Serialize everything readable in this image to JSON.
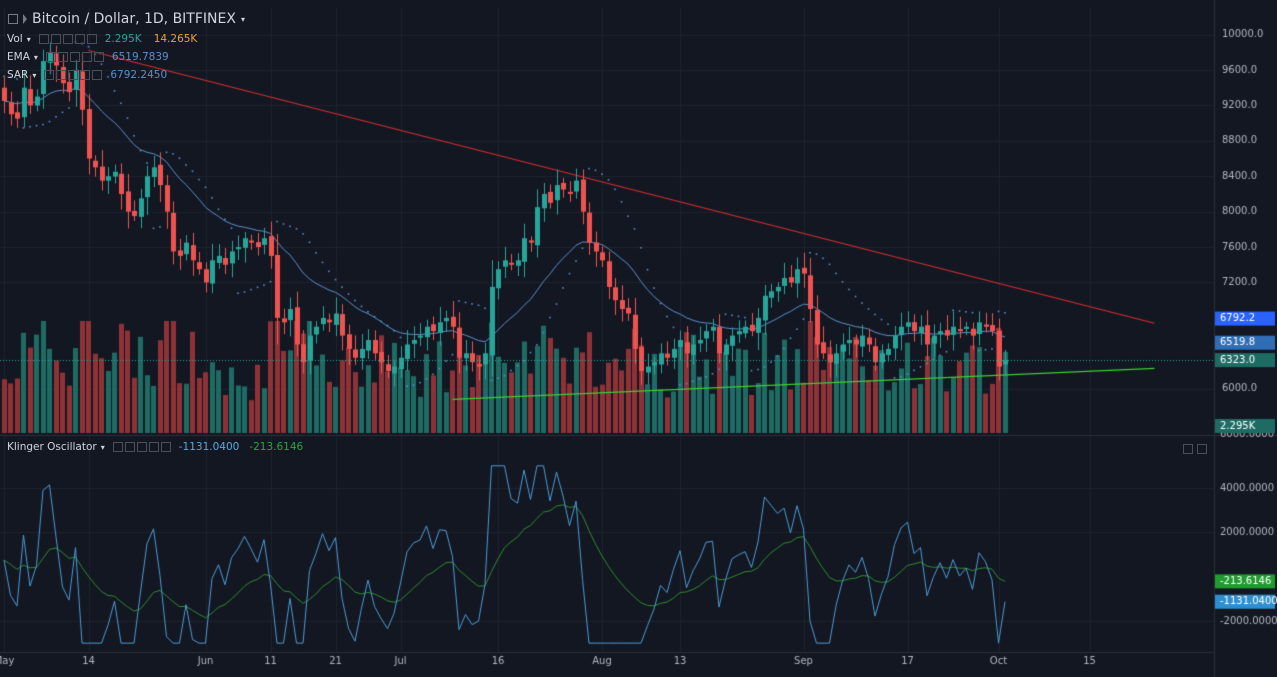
{
  "header": {
    "symbol": "Bitcoin / Dollar, 1D, BITFINEX",
    "caret": "▾"
  },
  "indicators": [
    {
      "name": "Vol",
      "values": [
        "2.295K",
        "14.265K"
      ],
      "colors": [
        "#26a69a",
        "#f0a030"
      ]
    },
    {
      "name": "EMA",
      "values": [
        "6519.7839"
      ],
      "colors": [
        "#5b8fc9"
      ]
    },
    {
      "name": "SAR",
      "values": [
        "6792.2450"
      ],
      "colors": [
        "#5b8fc9"
      ]
    }
  ],
  "oscillator": {
    "name": "Klinger Oscillator",
    "values": [
      "-1131.0400",
      "-213.6146"
    ],
    "colors": [
      "#5aa9e0",
      "#26a641"
    ]
  },
  "colors": {
    "background": "#131722",
    "up": "#26a69a",
    "down": "#ef5350",
    "vol_up": "#1e6b64",
    "vol_down": "#8e3236",
    "ema": "#5b8fc9",
    "sar": "#5b8fc9",
    "trend_down": "#d32f2f",
    "trend_up": "#3fcf2f",
    "klinger": "#4c9bd6",
    "signal": "#2e8b2e",
    "text": "#b2b5be"
  },
  "chart_data": {
    "type": "candlestick",
    "price_axis": {
      "ticks": [
        "10000.0",
        "9600.0",
        "9200.0",
        "8800.0",
        "8400.0",
        "8000.0",
        "7600.0",
        "7200.0",
        "6000.0"
      ],
      "ylim": [
        5500,
        10300
      ],
      "labels": [
        {
          "text": "6792.2",
          "value": 6792.2,
          "color": "#2962ff"
        },
        {
          "text": "6519.8",
          "value": 6519.8,
          "color": "#2f6eb5"
        },
        {
          "text": "6323.0",
          "value": 6323.0,
          "color": "#1e6b64"
        },
        {
          "text": "2.295K",
          "value": 5880,
          "color": "#1e6b64"
        }
      ],
      "bottom_label": "6000.0000"
    },
    "oscillator_axis": {
      "ticks": [
        "4000.0000",
        "2000.0000",
        "-2000.0000"
      ],
      "ylim": [
        -3400,
        6300
      ],
      "labels": [
        {
          "text": "-213.6146",
          "value": -213.6146,
          "color": "#1e9c2e"
        },
        {
          "text": "-1131.0400",
          "value": -1131.04,
          "color": "#2e8fd0"
        }
      ]
    },
    "x_axis": {
      "ticks": [
        "May",
        "14",
        "Jun",
        "11",
        "21",
        "Jul",
        "16",
        "Aug",
        "13",
        "Sep",
        "17",
        "Oct",
        "15"
      ],
      "tick_days": [
        0,
        13,
        31,
        41,
        51,
        61,
        76,
        92,
        104,
        123,
        139,
        153,
        167
      ]
    },
    "first_day": 0,
    "closes": [
      9250,
      9100,
      9050,
      9400,
      9200,
      9300,
      9700,
      9800,
      9650,
      9450,
      9350,
      9600,
      9150,
      8600,
      8500,
      8350,
      8400,
      8450,
      8200,
      8000,
      7950,
      8150,
      8400,
      8500,
      8300,
      8000,
      7550,
      7500,
      7650,
      7450,
      7350,
      7200,
      7450,
      7500,
      7400,
      7550,
      7600,
      7700,
      7650,
      7600,
      7700,
      7500,
      6800,
      6750,
      6900,
      6500,
      6300,
      6600,
      6700,
      6800,
      6750,
      6850,
      6600,
      6450,
      6350,
      6450,
      6550,
      6400,
      6300,
      6200,
      6250,
      6350,
      6500,
      6550,
      6600,
      6700,
      6650,
      6750,
      6800,
      6700,
      6350,
      6400,
      6300,
      6250,
      6400,
      7150,
      7350,
      7450,
      7400,
      7450,
      7700,
      7650,
      8050,
      8200,
      8100,
      8300,
      8250,
      8200,
      8350,
      8000,
      7650,
      7550,
      7450,
      7150,
      7000,
      6900,
      6850,
      6450,
      6200,
      6250,
      6300,
      6400,
      6350,
      6450,
      6550,
      6400,
      6500,
      6550,
      6650,
      6700,
      6400,
      6500,
      6600,
      6650,
      6700,
      6650,
      6800,
      7050,
      7100,
      7150,
      7250,
      7200,
      7350,
      7300,
      6900,
      6500,
      6400,
      6300,
      6400,
      6500,
      6550,
      6500,
      6600,
      6500,
      6300,
      6400,
      6450,
      6600,
      6700,
      6750,
      6650,
      6700,
      6500,
      6600,
      6650,
      6600,
      6700,
      6650,
      6700,
      6600,
      6750,
      6700,
      6650,
      6250,
      6323
    ]
  }
}
